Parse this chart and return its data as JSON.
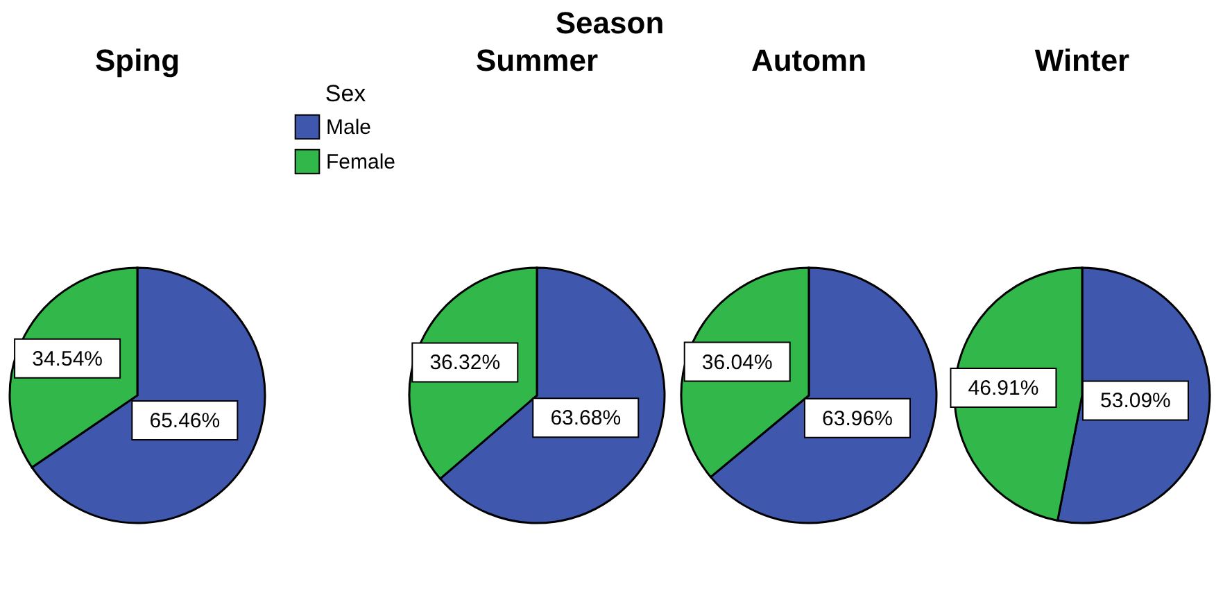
{
  "chart_data": [
    {
      "type": "pie",
      "title": "Sping",
      "annotations": [
        "Season"
      ],
      "categories": [
        "Male",
        "Female"
      ],
      "values": [
        65.46,
        34.54
      ],
      "value_labels": [
        "65.46%",
        "34.54%"
      ],
      "colors": [
        "#3f58ae",
        "#32b84a"
      ],
      "legend": "top right",
      "legend_title": "Sex"
    },
    {
      "type": "pie",
      "title": "Summer",
      "categories": [
        null,
        null
      ],
      "values": [
        63.68,
        36.32
      ],
      "value_labels": [
        "63.68%",
        "36.32%"
      ],
      "colors": [
        "#3f58ae",
        "#32b84a"
      ]
    },
    {
      "type": "pie",
      "title": "Automn",
      "categories": [
        null,
        null
      ],
      "values": [
        63.96,
        36.04
      ],
      "value_labels": [
        "63.96%",
        "36.04%"
      ],
      "colors": [
        "#3f58ae",
        "#32b84a"
      ]
    },
    {
      "type": "pie",
      "title": "Winter",
      "categories": [
        null,
        null
      ],
      "values": [
        53.09,
        46.91
      ],
      "value_labels": [
        "53.09%",
        "46.91%"
      ],
      "colors": [
        "#3f58ae",
        "#32b84a"
      ]
    }
  ]
}
